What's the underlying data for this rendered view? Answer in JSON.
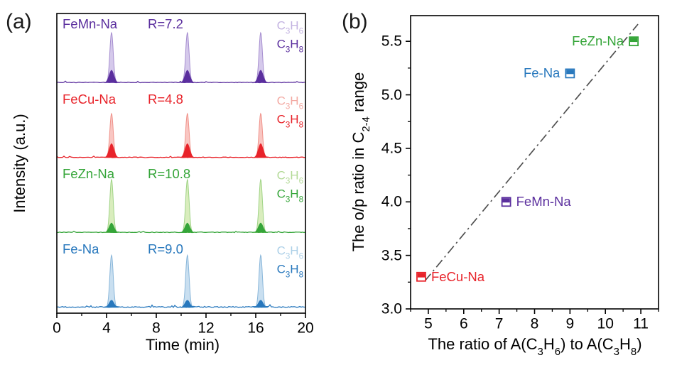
{
  "figure": {
    "panels": [
      {
        "tag": "(a)"
      },
      {
        "tag": "(b)"
      }
    ]
  },
  "chart_data": [
    {
      "type": "line",
      "panel": "(a)",
      "title": "",
      "xlabel": "Time (min)",
      "ylabel": "Intensity (a.u.)",
      "xlim": [
        0,
        20
      ],
      "xticks": [
        0,
        4,
        8,
        12,
        16,
        20
      ],
      "x_minor_ticks": [
        2,
        6,
        10,
        14,
        18
      ],
      "grid": false,
      "peak_times_min": [
        4.4,
        10.5,
        16.4
      ],
      "series": [
        {
          "name": "FeMn-Na",
          "ratio_label": "R=7.2",
          "ratio_value": 7.2,
          "color": "#5b2f9e",
          "fill": "#d5c9eb",
          "fill_edge": "#a78fd0",
          "olefin_peak_height": 0.67,
          "paraffin_peak_height": 0.17,
          "species": [
            {
              "label": "C3H6",
              "color": "#c3b3e1"
            },
            {
              "label": "C3H8",
              "color": "#5b2f9e"
            }
          ]
        },
        {
          "name": "FeCu-Na",
          "ratio_label": "R=4.8",
          "ratio_value": 4.8,
          "color": "#e8232a",
          "fill": "#f9c6c2",
          "fill_edge": "#f0938b",
          "olefin_peak_height": 0.59,
          "paraffin_peak_height": 0.19,
          "species": [
            {
              "label": "C3H6",
              "color": "#f3a9a2"
            },
            {
              "label": "C3H8",
              "color": "#e8232a"
            }
          ]
        },
        {
          "name": "FeZn-Na",
          "ratio_label": "R=10.8",
          "ratio_value": 10.8,
          "color": "#35a539",
          "fill": "#d9edbd",
          "fill_edge": "#a0d487",
          "olefin_peak_height": 0.71,
          "paraffin_peak_height": 0.13,
          "species": [
            {
              "label": "C3H6",
              "color": "#b4da98"
            },
            {
              "label": "C3H8",
              "color": "#35a539"
            }
          ]
        },
        {
          "name": "Fe-Na",
          "ratio_label": "R=9.0",
          "ratio_value": 9.0,
          "color": "#2878bd",
          "fill": "#c9dff0",
          "fill_edge": "#8ab7da",
          "olefin_peak_height": 0.7,
          "paraffin_peak_height": 0.1,
          "species": [
            {
              "label": "C3H6",
              "color": "#add0e8"
            },
            {
              "label": "C3H8",
              "color": "#2878bd"
            }
          ]
        }
      ]
    },
    {
      "type": "scatter",
      "panel": "(b)",
      "title": "",
      "xlabel": "The ratio of A(C3H6) to A(C3H8)",
      "ylabel": "The o/p ratio in C2-4 range",
      "xlim": [
        4.5,
        11.5
      ],
      "ylim": [
        3.0,
        5.74
      ],
      "xticks": [
        5,
        6,
        7,
        8,
        9,
        10,
        11
      ],
      "yticks": [
        3.0,
        3.5,
        4.0,
        4.5,
        5.0,
        5.5
      ],
      "grid": false,
      "marker": "half-filled-square",
      "points": [
        {
          "name": "FeCu-Na",
          "x": 4.8,
          "y": 3.3,
          "color": "#e8232a",
          "label_side": "right"
        },
        {
          "name": "FeMn-Na",
          "x": 7.2,
          "y": 4.0,
          "color": "#5b2f9e",
          "label_side": "right"
        },
        {
          "name": "Fe-Na",
          "x": 9.0,
          "y": 5.2,
          "color": "#2878bd",
          "label_side": "left"
        },
        {
          "name": "FeZn-Na",
          "x": 10.8,
          "y": 5.5,
          "color": "#35a539",
          "label_side": "left"
        }
      ],
      "trend_line": {
        "style": "dash-dot",
        "color": "#4d4d4d",
        "x_start": 4.9,
        "y_start": 3.26,
        "x_end": 10.92,
        "y_end": 5.66
      }
    }
  ]
}
